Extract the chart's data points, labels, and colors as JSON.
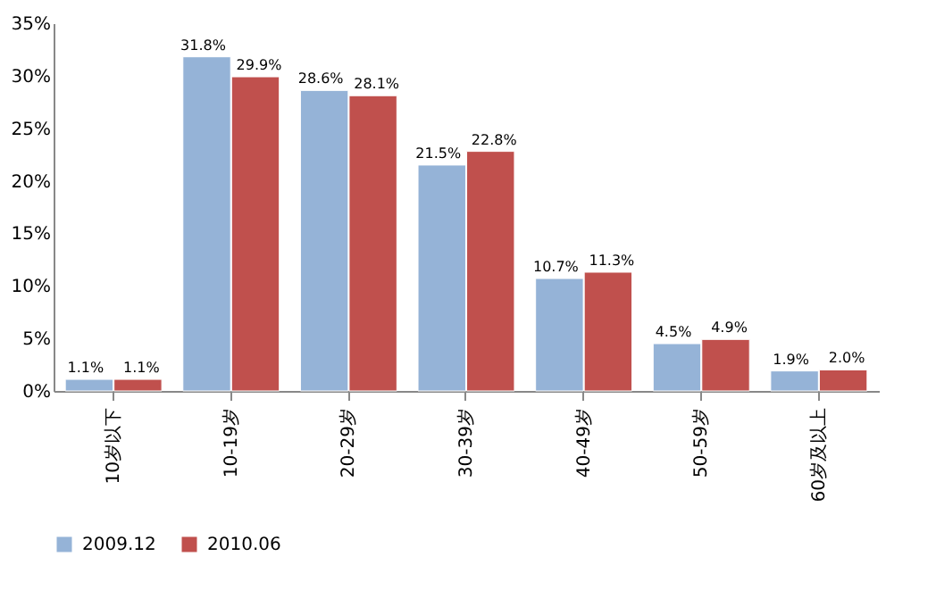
{
  "chart_data": {
    "type": "bar",
    "categories": [
      "10岁以下",
      "10-19岁",
      "20-29岁",
      "30-39岁",
      "40-49岁",
      "50-59岁",
      "60岁及以上"
    ],
    "series": [
      {
        "name": "2009.12",
        "color": "#95b3d7",
        "values": [
          1.1,
          31.8,
          28.6,
          21.5,
          10.7,
          4.5,
          1.9
        ],
        "value_labels": [
          "1.1%",
          "31.8%",
          "28.6%",
          "21.5%",
          "10.7%",
          "4.5%",
          "1.9%"
        ]
      },
      {
        "name": "2010.06",
        "color": "#c0504d",
        "values": [
          1.1,
          29.9,
          28.1,
          22.8,
          11.3,
          4.9,
          2.0
        ],
        "value_labels": [
          "1.1%",
          "29.9%",
          "28.1%",
          "22.8%",
          "11.3%",
          "4.9%",
          "2.0%"
        ]
      }
    ],
    "ylim": [
      0,
      35
    ],
    "yticks": [
      {
        "value": 0,
        "label": "0%"
      },
      {
        "value": 5,
        "label": "5%"
      },
      {
        "value": 10,
        "label": "10%"
      },
      {
        "value": 15,
        "label": "15%"
      },
      {
        "value": 20,
        "label": "20%"
      },
      {
        "value": 25,
        "label": "25%"
      },
      {
        "value": 30,
        "label": "30%"
      },
      {
        "value": 35,
        "label": "35%"
      }
    ],
    "grid": false,
    "legend": "bottom"
  }
}
